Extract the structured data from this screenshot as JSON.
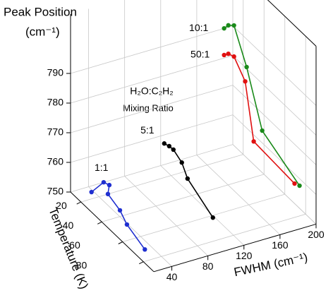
{
  "chart_data": {
    "type": "line3d",
    "x_label": "FWHM (cm⁻¹)",
    "y_label": "Temperature (K)",
    "z_label": "Peak Position",
    "z_unit": "(cm⁻¹)",
    "annotations": [
      "H₂O:C₂H₂",
      "Mixing Ratio"
    ],
    "xlim": [
      20,
      200
    ],
    "xticks": [
      40,
      80,
      120,
      160,
      200
    ],
    "ylim": [
      10,
      90
    ],
    "yticks": [
      20,
      40,
      60,
      80
    ],
    "zlim": [
      750,
      810
    ],
    "zticks": [
      750,
      760,
      770,
      780,
      790
    ],
    "grid": true,
    "series": [
      {
        "name": "1:1",
        "color": "#1f2fd0",
        "x": [
          31.7,
          39.4,
          39.9,
          32.6,
          34.4,
          30.6,
          21.6
        ],
        "y": [
          20,
          25,
          30,
          35,
          45,
          55,
          80
        ],
        "z": [
          752.3,
          756.6,
          757.3,
          756.6,
          754.3,
          753.2,
          754
        ]
      },
      {
        "name": "5:1",
        "color": "#000000",
        "x": [
          112.4,
          112.1,
          111,
          108.8,
          103.6,
          97.1
        ],
        "y": [
          20,
          25,
          30,
          40,
          50,
          80
        ],
        "z": [
          761.5,
          762.3,
          762.9,
          762.1,
          760.5,
          758
        ]
      },
      {
        "name": "10:1",
        "color": "#1a8a1a",
        "x": [
          178.8,
          177.7,
          178.2,
          180.7,
          186.4,
          193.2
        ],
        "y": [
          20,
          25,
          30,
          40,
          50,
          80
        ],
        "z": [
          794.4,
          797.2,
          798.8,
          787.9,
          769.3,
          760.2
        ]
      },
      {
        "name": "50:1",
        "color": "#e01010",
        "x": [
          178.8,
          177.7,
          178.2,
          179.1,
          177,
          187.7
        ],
        "y": [
          20,
          25,
          30,
          40,
          50,
          80
        ],
        "z": [
          785.4,
          787.6,
          788.3,
          783.2,
          766.5,
          761.4
        ]
      }
    ]
  }
}
